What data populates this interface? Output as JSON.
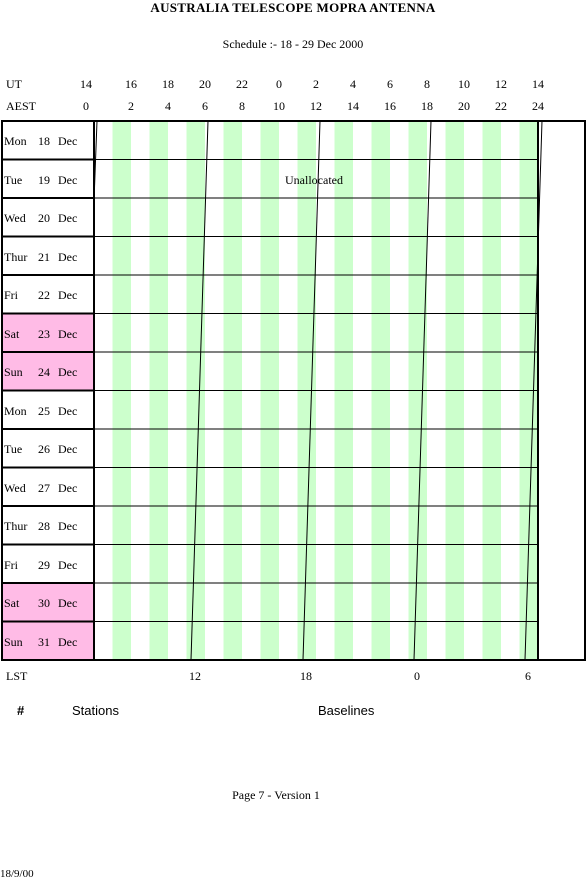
{
  "header": {
    "title": "AUSTRALIA TELESCOPE MOPRA ANTENNA",
    "subtitle": "Schedule :- 18 - 29 Dec 2000"
  },
  "axes": {
    "ut_label": "UT",
    "ut_ticks": [
      "14",
      "16",
      "18",
      "20",
      "22",
      "0",
      "2",
      "4",
      "6",
      "8",
      "10",
      "12",
      "14"
    ],
    "aest_label": "AEST",
    "aest_ticks": [
      "0",
      "2",
      "4",
      "6",
      "8",
      "10",
      "12",
      "14",
      "16",
      "18",
      "20",
      "22",
      "24"
    ],
    "lst_label": "LST",
    "lst_ticks": [
      "12",
      "18",
      "0",
      "6"
    ]
  },
  "days": [
    {
      "name": "Mon",
      "date": "18",
      "month": "Dec",
      "weekend": false
    },
    {
      "name": "Tue",
      "date": "19",
      "month": "Dec",
      "weekend": false
    },
    {
      "name": "Wed",
      "date": "20",
      "month": "Dec",
      "weekend": false
    },
    {
      "name": "Thur",
      "date": "21",
      "month": "Dec",
      "weekend": false
    },
    {
      "name": "Fri",
      "date": "22",
      "month": "Dec",
      "weekend": false
    },
    {
      "name": "Sat",
      "date": "23",
      "month": "Dec",
      "weekend": true
    },
    {
      "name": "Sun",
      "date": "24",
      "month": "Dec",
      "weekend": true
    },
    {
      "name": "Mon",
      "date": "25",
      "month": "Dec",
      "weekend": false
    },
    {
      "name": "Tue",
      "date": "26",
      "month": "Dec",
      "weekend": false
    },
    {
      "name": "Wed",
      "date": "27",
      "month": "Dec",
      "weekend": false
    },
    {
      "name": "Thur",
      "date": "28",
      "month": "Dec",
      "weekend": false
    },
    {
      "name": "Fri",
      "date": "29",
      "month": "Dec",
      "weekend": false
    },
    {
      "name": "Sat",
      "date": "30",
      "month": "Dec",
      "weekend": true
    },
    {
      "name": "Sun",
      "date": "31",
      "month": "Dec",
      "weekend": true
    }
  ],
  "allocation": {
    "label": "Unallocated"
  },
  "legend": {
    "hash": "#",
    "stations": "Stations",
    "baselines": "Baselines"
  },
  "footer": {
    "page": "Page 7 - Version 1",
    "date": "18/9/00"
  },
  "colors": {
    "weekend": "#ffbbe6",
    "stripe": "#ccffcc",
    "line": "#000000"
  }
}
